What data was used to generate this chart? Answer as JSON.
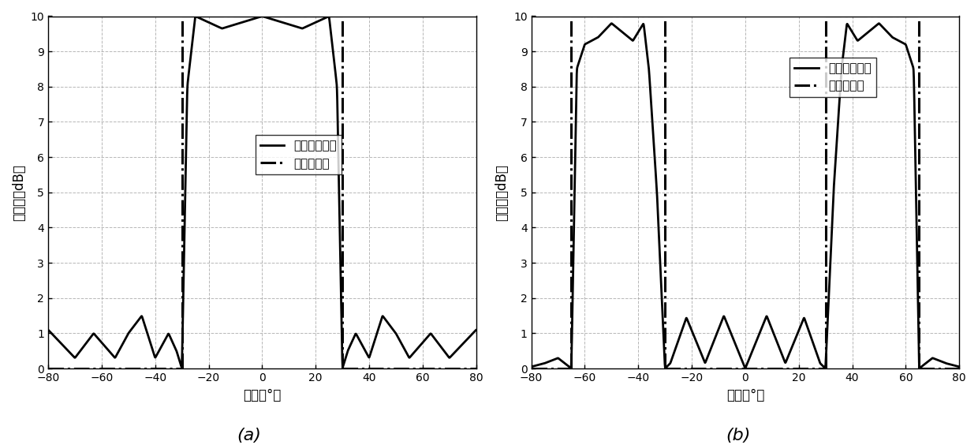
{
  "title_a": "(a)",
  "title_b": "(b)",
  "xlabel_a": "角度（°）",
  "xlabel_b": "角度（°）",
  "ylabel": "方向图（dB）",
  "xlim": [
    -80,
    80
  ],
  "ylim": [
    0,
    10
  ],
  "xticks": [
    -80,
    -60,
    -40,
    -20,
    0,
    20,
    40,
    60,
    80
  ],
  "yticks": [
    0,
    1,
    2,
    3,
    4,
    5,
    6,
    7,
    8,
    9,
    10
  ],
  "legend_solid": "本发明方向图",
  "legend_dashdot": "期望方向图",
  "plot_a_beam_edges": [
    -30,
    30
  ],
  "plot_b_beam_edges": [
    -65,
    -30,
    30,
    65
  ],
  "background_color": "#ffffff",
  "line_color": "#000000",
  "grid_color": "#999999"
}
